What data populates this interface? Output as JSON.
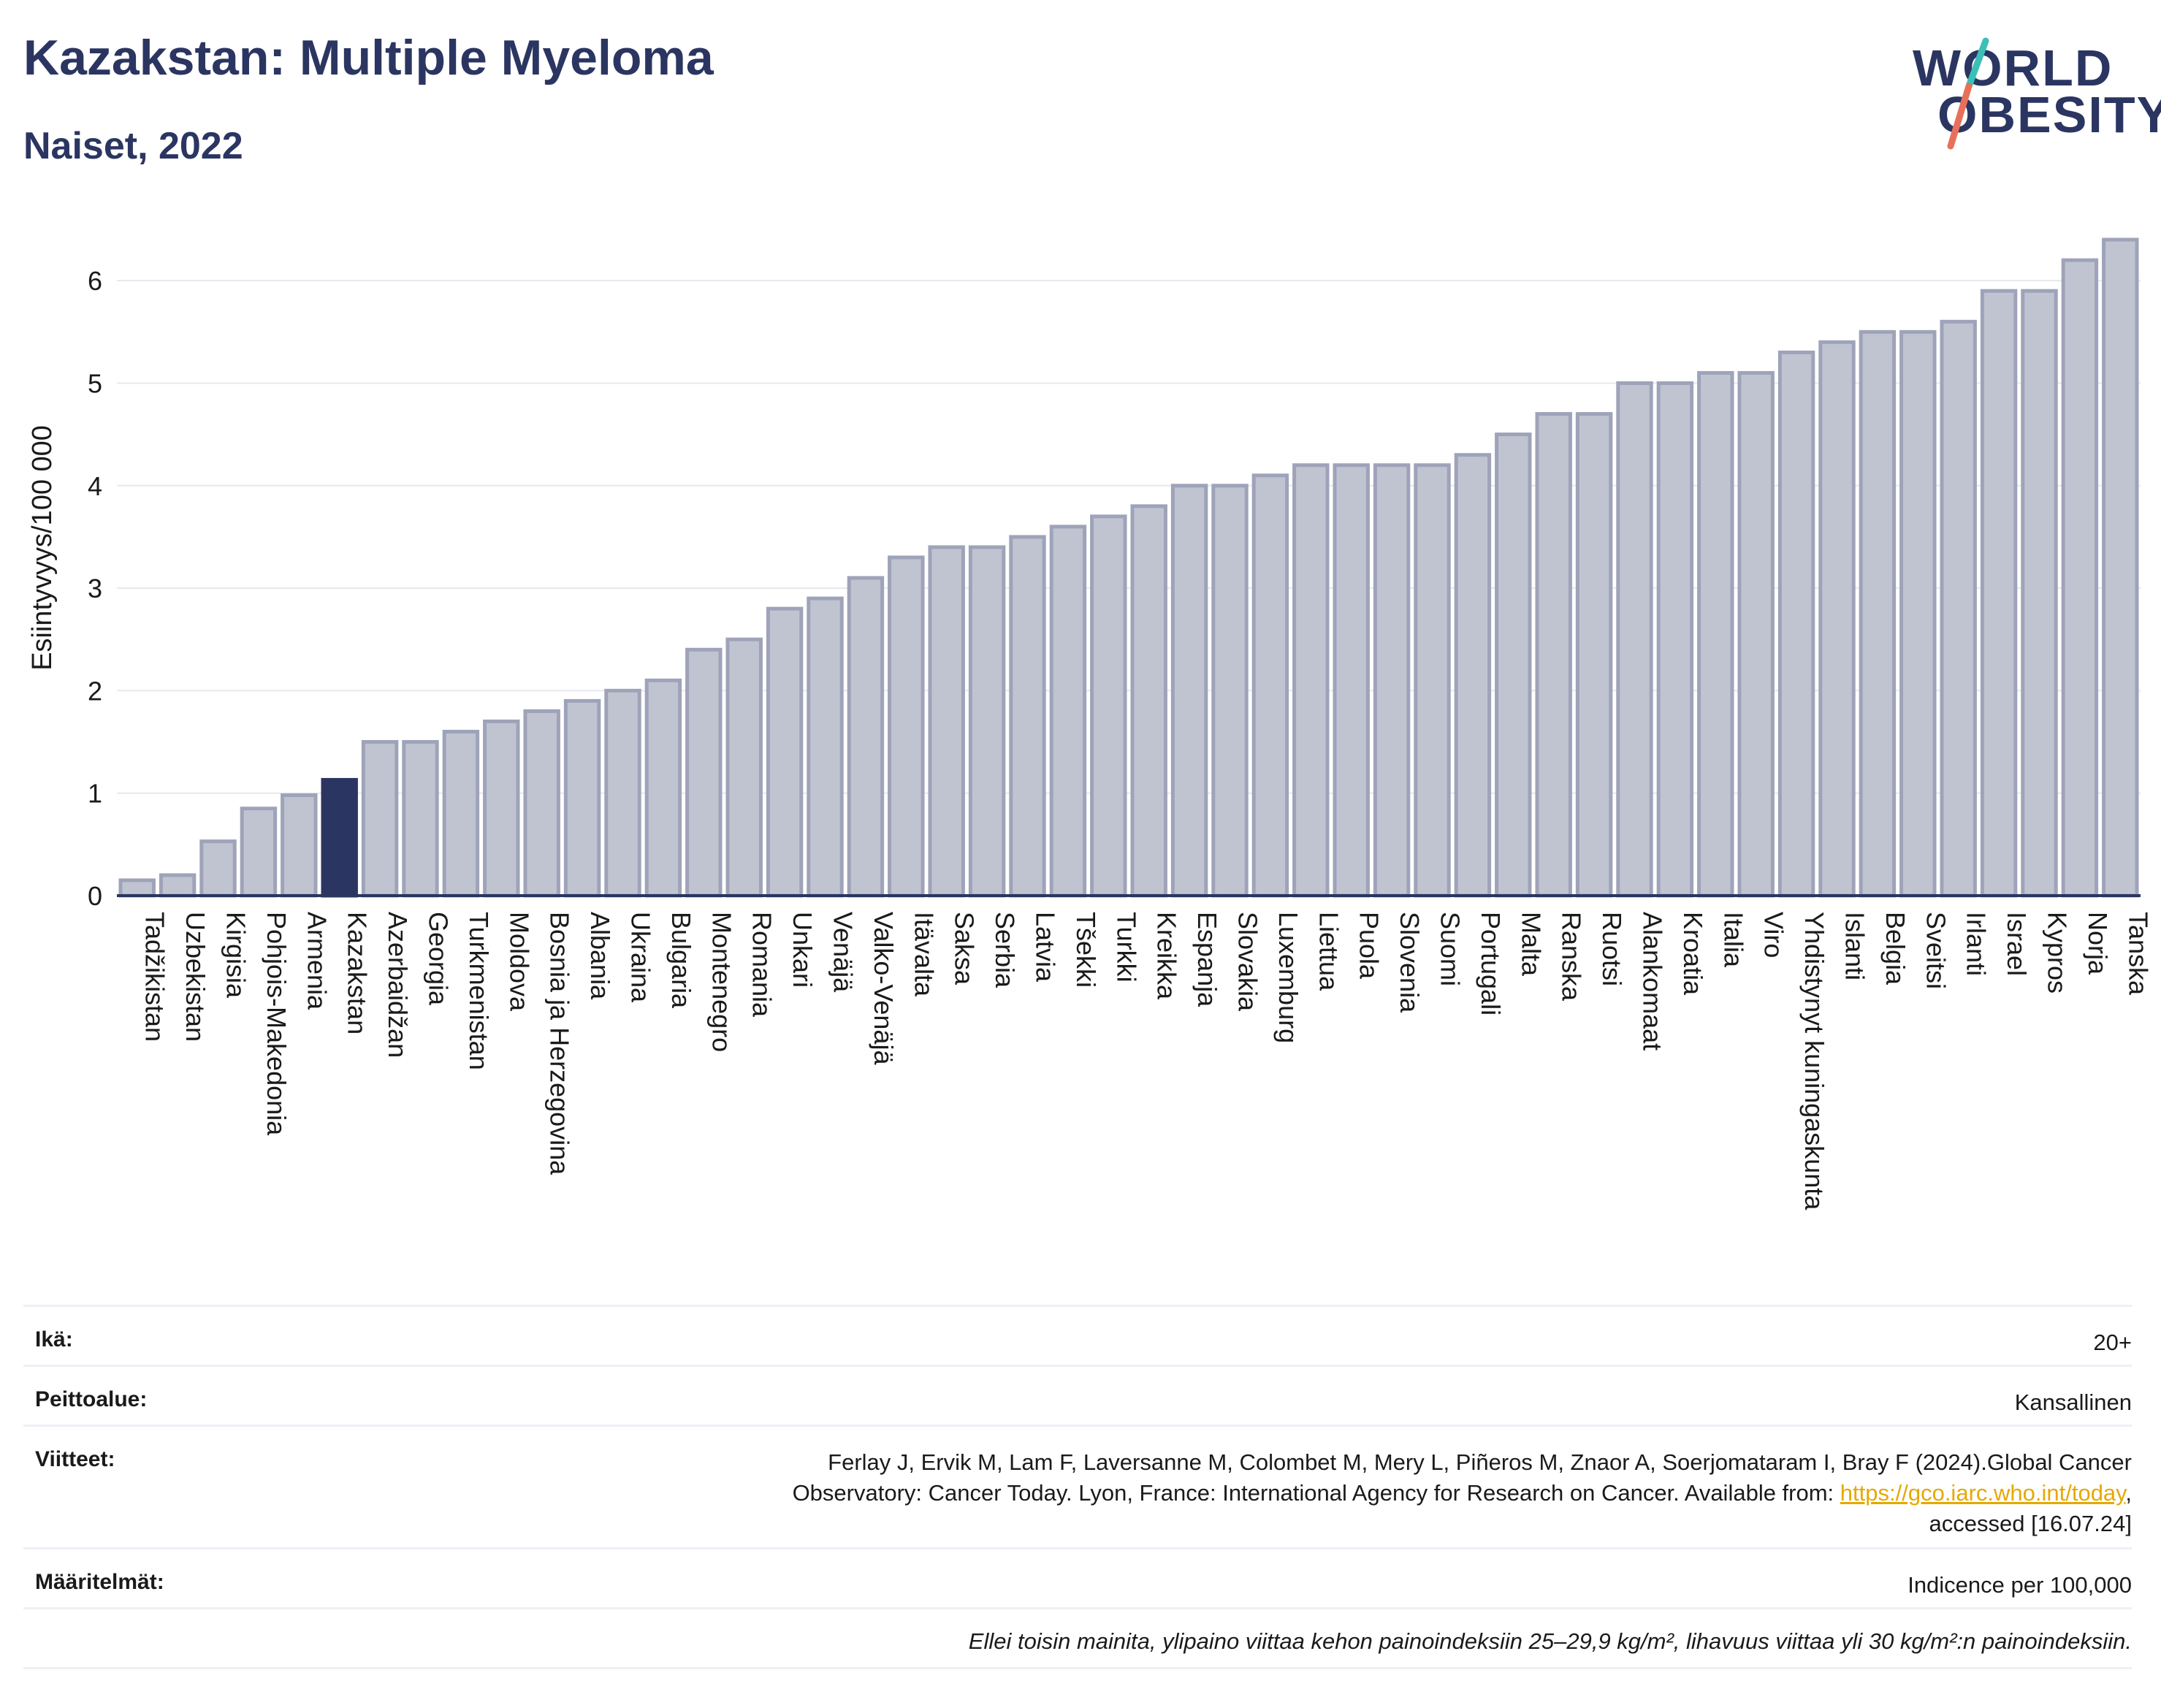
{
  "header": {
    "title": "Kazakstan: Multiple Myeloma",
    "subtitle": "Naiset, 2022"
  },
  "logo": {
    "line1": "WORLD",
    "line2": "OBESITY"
  },
  "colors": {
    "bar": "#c0c4d1",
    "bar_edge": "#9ea3b9",
    "highlight": "#2b3561",
    "title": "#2b3561",
    "grid": "#e6e8ef",
    "link": "#e6a800"
  },
  "chart_data": {
    "type": "bar",
    "ylabel": "Esiintyvyys/100 000",
    "ylim": [
      0,
      6.6
    ],
    "yticks": [
      0,
      1,
      2,
      3,
      4,
      5,
      6
    ],
    "grid": true,
    "highlight": "Kazakstan",
    "categories": [
      "Tadžikistan",
      "Uzbekistan",
      "Kirgisia",
      "Pohjois-Makedonia",
      "Armenia",
      "Kazakstan",
      "Azerbaidžan",
      "Georgia",
      "Turkmenistan",
      "Moldova",
      "Bosnia ja Herzegovina",
      "Albania",
      "Ukraina",
      "Bulgaria",
      "Montenegro",
      "Romania",
      "Unkari",
      "Venäjä",
      "Valko-Venäjä",
      "Itävalta",
      "Saksa",
      "Serbia",
      "Latvia",
      "Tšekki",
      "Turkki",
      "Kreikka",
      "Espanja",
      "Slovakia",
      "Luxemburg",
      "Liettua",
      "Puola",
      "Slovenia",
      "Suomi",
      "Portugali",
      "Malta",
      "Ranska",
      "Ruotsi",
      "Alankomaat",
      "Kroatia",
      "Italia",
      "Viro",
      "Yhdistynyt kuningaskunta",
      "Islanti",
      "Belgia",
      "Sveitsi",
      "Irlanti",
      "Israel",
      "Kypros",
      "Norja",
      "Tanska"
    ],
    "values": [
      0.15,
      0.2,
      0.53,
      0.85,
      0.98,
      1.13,
      1.5,
      1.5,
      1.6,
      1.7,
      1.8,
      1.9,
      2.0,
      2.1,
      2.4,
      2.5,
      2.8,
      2.9,
      3.1,
      3.3,
      3.4,
      3.4,
      3.5,
      3.6,
      3.7,
      3.8,
      4.0,
      4.0,
      4.1,
      4.2,
      4.2,
      4.2,
      4.2,
      4.3,
      4.5,
      4.7,
      4.7,
      5.0,
      5.0,
      5.1,
      5.1,
      5.3,
      5.4,
      5.5,
      5.5,
      5.6,
      5.9,
      5.9,
      6.2,
      6.4
    ]
  },
  "info": {
    "age_label": "Ikä:",
    "age_value": "20+",
    "coverage_label": "Peittoalue:",
    "coverage_value": "Kansallinen",
    "refs_label": "Viitteet:",
    "refs_line1": "Ferlay J, Ervik M, Lam F, Laversanne M, Colombet M, Mery L, Piñeros M, Znaor A, Soerjomataram I, Bray F (2024).Global Cancer",
    "refs_line2_pre": "Observatory: Cancer Today. Lyon, France: International Agency for Research on Cancer. Available from: ",
    "refs_link": "https://gco.iarc.who.int/today",
    "refs_line2_post": ",",
    "refs_line3": "accessed [16.07.24]",
    "defs_label": "Määritelmät:",
    "defs_value": "Indicence per 100,000",
    "footnote": "Ellei toisin mainita, ylipaino viittaa kehon painoindeksiin 25–29,9 kg/m², lihavuus viittaa yli 30 kg/m²:n painoindeksiin."
  }
}
